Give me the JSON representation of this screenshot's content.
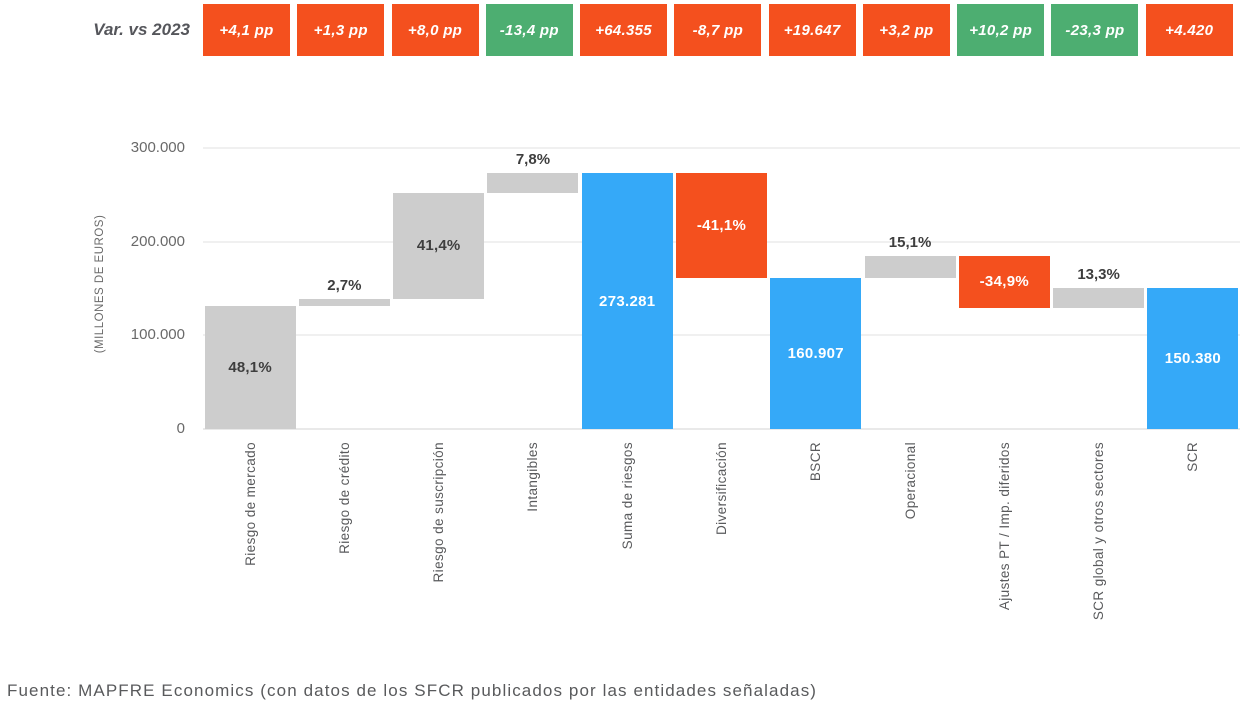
{
  "header": {
    "label": "Var. vs 2023",
    "badges": [
      {
        "text": "+4,1 pp",
        "color": "orange"
      },
      {
        "text": "+1,3 pp",
        "color": "orange"
      },
      {
        "text": "+8,0 pp",
        "color": "orange"
      },
      {
        "text": "-13,4 pp",
        "color": "green"
      },
      {
        "text": "+64.355",
        "color": "orange"
      },
      {
        "text": "-8,7 pp",
        "color": "orange"
      },
      {
        "text": "+19.647",
        "color": "orange"
      },
      {
        "text": "+3,2 pp",
        "color": "orange"
      },
      {
        "text": "+10,2 pp",
        "color": "green"
      },
      {
        "text": "-23,3 pp",
        "color": "green"
      },
      {
        "text": "+4.420",
        "color": "orange"
      }
    ]
  },
  "chart_data": {
    "type": "bar",
    "subtype": "waterfall",
    "title": "",
    "xlabel": "",
    "ylabel": "(MILLONES DE EUROS)",
    "ylim": [
      0,
      300000
    ],
    "grid": true,
    "yticks": [
      {
        "value": 0,
        "label": "0"
      },
      {
        "value": 100000,
        "label": "100.000"
      },
      {
        "value": 200000,
        "label": "200.000"
      },
      {
        "value": 300000,
        "label": "300.000"
      }
    ],
    "categories": [
      "Riesgo de mercado",
      "Riesgo de crédito",
      "Riesgo de suscripción",
      "Intangibles",
      "Suma de riesgos",
      "Diversificación",
      "BSCR",
      "Operacional",
      "Ajustes PT / Imp. diferidos",
      "SCR global y otros sectores",
      "SCR"
    ],
    "bars": [
      {
        "category": "Riesgo de mercado",
        "from": 0,
        "to": 131448,
        "color": "gray",
        "label": "48,1%",
        "label_pos": "inside"
      },
      {
        "category": "Riesgo de crédito",
        "from": 131448,
        "to": 138827,
        "color": "gray",
        "label": "2,7%",
        "label_pos": "above"
      },
      {
        "category": "Riesgo de suscripción",
        "from": 138827,
        "to": 251965,
        "color": "gray",
        "label": "41,4%",
        "label_pos": "inside"
      },
      {
        "category": "Intangibles",
        "from": 251965,
        "to": 273281,
        "color": "gray",
        "label": "7,8%",
        "label_pos": "above"
      },
      {
        "category": "Suma de riesgos",
        "from": 0,
        "to": 273281,
        "color": "blue",
        "label": "273.281",
        "label_pos": "inside"
      },
      {
        "category": "Diversificación",
        "from": 160907,
        "to": 273281,
        "color": "red",
        "label": "-41,1%",
        "label_pos": "inside"
      },
      {
        "category": "BSCR",
        "from": 0,
        "to": 160907,
        "color": "blue",
        "label": "160.907",
        "label_pos": "inside"
      },
      {
        "category": "Operacional",
        "from": 160907,
        "to": 185204,
        "color": "gray",
        "label": "15,1%",
        "label_pos": "above"
      },
      {
        "category": "Ajustes PT / Imp. diferidos",
        "from": 129047,
        "to": 185204,
        "color": "red",
        "label": "-34,9%",
        "label_pos": "inside"
      },
      {
        "category": "SCR global y otros sectores",
        "from": 129047,
        "to": 150380,
        "color": "gray",
        "label": "13,3%",
        "label_pos": "above"
      },
      {
        "category": "SCR",
        "from": 0,
        "to": 150380,
        "color": "blue",
        "label": "150.380",
        "label_pos": "inside"
      }
    ]
  },
  "footer": {
    "source": "Fuente: MAPFRE Economics (con datos de los SFCR publicados por las entidades señaladas)"
  },
  "colors": {
    "orange": "#F4501E",
    "green": "#4DAE71",
    "blue": "#35A9F8",
    "red": "#F4501E",
    "gray": "#CDCDCD"
  }
}
